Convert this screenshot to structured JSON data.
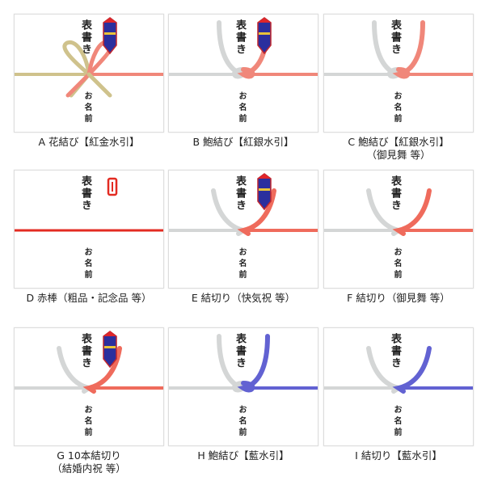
{
  "items": [
    {
      "id": "A",
      "caption": "A 花結び【紅金水引】",
      "sub": "",
      "type": "hana",
      "left": "#cfc28c",
      "right": "#f0877a",
      "noshi": "ornament",
      "title": "表書き",
      "name": "お名前"
    },
    {
      "id": "B",
      "caption": "B 鮑結び【紅銀水引】",
      "sub": "",
      "type": "awabi",
      "left": "#d4d6d6",
      "right": "#f0877a",
      "noshi": "ornament",
      "title": "表書き",
      "name": "お名前"
    },
    {
      "id": "C",
      "caption": "C 鮑結び【紅銀水引】",
      "sub": "（御見舞 等）",
      "type": "awabi",
      "left": "#d4d6d6",
      "right": "#f0877a",
      "noshi": "none",
      "title": "表書き",
      "name": "お名前"
    },
    {
      "id": "D",
      "caption": "D 赤棒（粗品・記念品 等）",
      "sub": "",
      "type": "bar",
      "left": "#e32b22",
      "right": "#e32b22",
      "noshi": "stamp",
      "title": "表書き",
      "name": "お名前"
    },
    {
      "id": "E",
      "caption": "E 結切り（快気祝 等）",
      "sub": "",
      "type": "kiri",
      "left": "#d4d6d6",
      "right": "#ef6b5c",
      "noshi": "ornament",
      "title": "表書き",
      "name": "お名前"
    },
    {
      "id": "F",
      "caption": "F 結切り（御見舞 等）",
      "sub": "",
      "type": "kiri",
      "left": "#d4d6d6",
      "right": "#ef6b5c",
      "noshi": "none",
      "title": "表書き",
      "name": "お名前"
    },
    {
      "id": "G",
      "caption": "G 10本結切り",
      "sub": "（結婚内祝 等）",
      "type": "kiri",
      "left": "#d4d6d6",
      "right": "#ef6b5c",
      "noshi": "ornament",
      "title": "表書き",
      "name": "お名前"
    },
    {
      "id": "H",
      "caption": "H 鮑結び【藍水引】",
      "sub": "",
      "type": "awabi",
      "left": "#d4d6d6",
      "right": "#6262d2",
      "noshi": "none",
      "title": "表書き",
      "name": "お名前"
    },
    {
      "id": "I",
      "caption": "I 結切り【藍水引】",
      "sub": "",
      "type": "kiri",
      "left": "#d4d6d6",
      "right": "#6262d2",
      "noshi": "none",
      "title": "表書き",
      "name": "お名前"
    }
  ]
}
